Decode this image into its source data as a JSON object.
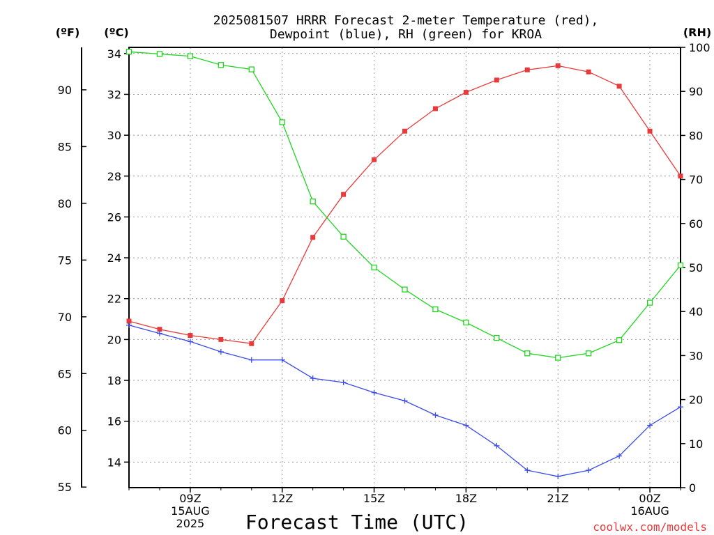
{
  "chart_data": {
    "type": "line",
    "title_line1": "2025081507 HRRR Forecast 2-meter Temperature (red),",
    "title_line2": "Dewpoint (blue), RH (green) for KROA",
    "xlabel": "Forecast Time (UTC)",
    "credit": "coolwx.com/models",
    "unit_labels": {
      "fahrenheit": "(ºF)",
      "celsius": "(ºC)",
      "rh": "(RH)"
    },
    "x_hours": [
      7,
      8,
      9,
      10,
      11,
      12,
      13,
      14,
      15,
      16,
      17,
      18,
      19,
      20,
      21,
      22,
      23,
      24,
      25
    ],
    "xlim": [
      7,
      25
    ],
    "x_ticks": [
      {
        "hour": 9,
        "lines": [
          "09Z",
          "15AUG",
          "2025"
        ]
      },
      {
        "hour": 12,
        "lines": [
          "12Z"
        ]
      },
      {
        "hour": 15,
        "lines": [
          "15Z"
        ]
      },
      {
        "hour": 18,
        "lines": [
          "18Z"
        ]
      },
      {
        "hour": 21,
        "lines": [
          "21Z"
        ]
      },
      {
        "hour": 24,
        "lines": [
          "00Z",
          "16AUG"
        ]
      }
    ],
    "ylim_celsius": [
      12.75,
      34.3
    ],
    "celsius_ticks": [
      14,
      16,
      18,
      20,
      22,
      24,
      26,
      28,
      30,
      32,
      34
    ],
    "fahrenheit_ticks": [
      55,
      60,
      65,
      70,
      75,
      80,
      85,
      90
    ],
    "ylim_rh": [
      0,
      100
    ],
    "rh_ticks": [
      0,
      10,
      20,
      30,
      40,
      50,
      60,
      70,
      80,
      90,
      100
    ],
    "grid": true,
    "series": [
      {
        "name": "Temperature",
        "axis": "celsius",
        "color": "#e83a3a",
        "marker": "filled-square",
        "values": [
          20.9,
          20.5,
          20.2,
          20.0,
          19.8,
          21.9,
          25.0,
          27.1,
          28.8,
          30.2,
          31.3,
          32.1,
          32.7,
          33.2,
          33.4,
          33.1,
          32.4,
          30.2,
          28.0
        ]
      },
      {
        "name": "Dewpoint",
        "axis": "celsius",
        "color": "#3a4ae8",
        "marker": "plus",
        "values": [
          20.7,
          20.3,
          19.9,
          19.4,
          19.0,
          19.0,
          18.1,
          17.9,
          17.4,
          17.0,
          16.3,
          15.8,
          14.8,
          13.6,
          13.3,
          13.6,
          14.3,
          15.8,
          16.7
        ]
      },
      {
        "name": "RH",
        "axis": "rh",
        "color": "#1ed51e",
        "marker": "open-square",
        "values": [
          99,
          98.5,
          98,
          96,
          95,
          83,
          65,
          57,
          50,
          45,
          40.5,
          37.5,
          34,
          30.5,
          29.5,
          30.5,
          33.5,
          42,
          50.5
        ]
      }
    ]
  }
}
